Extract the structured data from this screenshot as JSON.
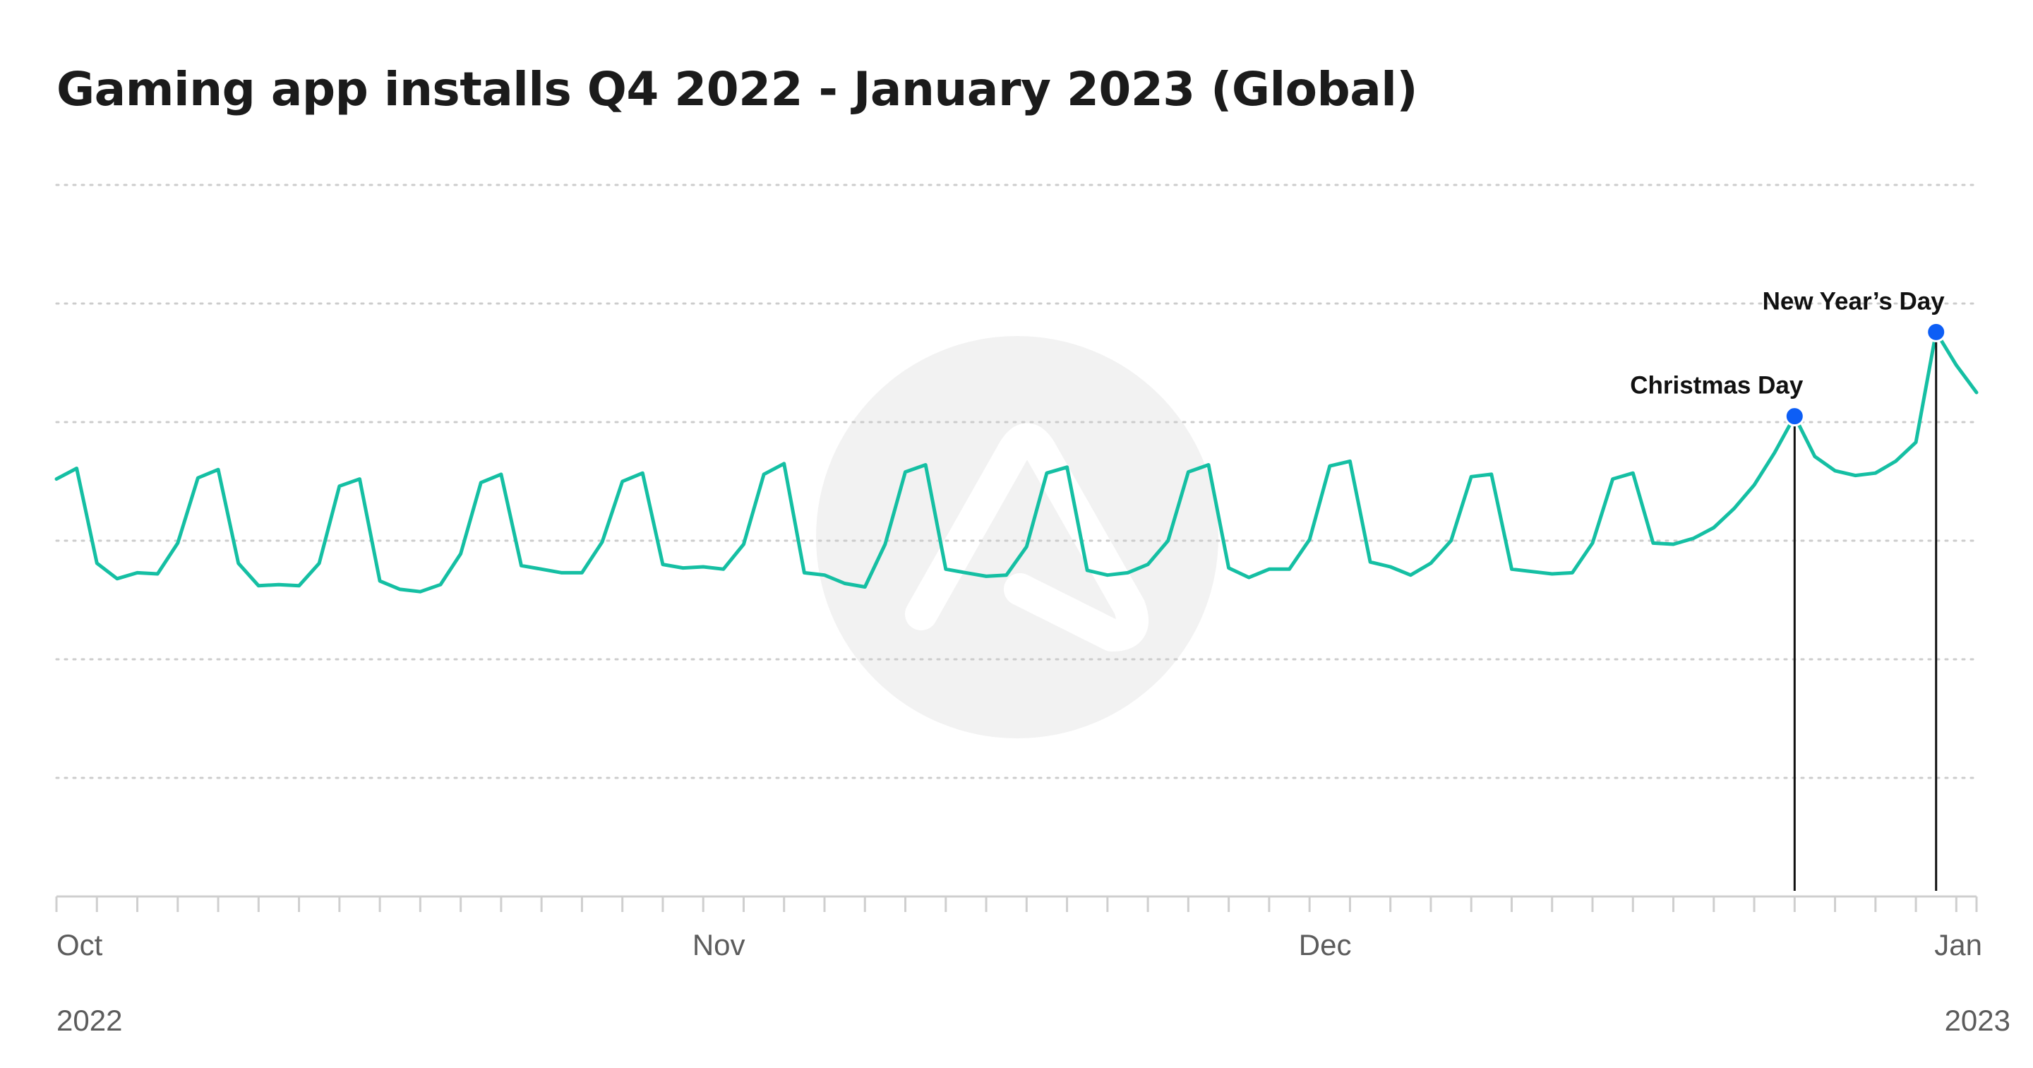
{
  "chart_data": {
    "type": "line",
    "title": "Gaming app installs Q4 2022 - January 2023 (Global)",
    "xlabel": "",
    "ylabel": "",
    "x_tick_labels": [
      "Oct",
      "Nov",
      "Dec",
      "Jan"
    ],
    "year_labels": [
      "2022",
      "2023"
    ],
    "grid": true,
    "grid_style": "dotted horizontal",
    "y_axis_ticks_shown": false,
    "ylim": [
      0,
      6
    ],
    "series": [
      {
        "values": [
          3.52,
          3.61,
          2.81,
          2.68,
          2.73,
          2.72,
          2.98,
          3.53,
          3.6,
          2.81,
          2.62,
          2.63,
          2.62,
          2.81,
          3.46,
          3.52,
          2.66,
          2.59,
          2.57,
          2.63,
          2.89,
          3.49,
          3.56,
          2.79,
          2.76,
          2.73,
          2.73,
          2.99,
          3.5,
          3.57,
          2.8,
          2.77,
          2.78,
          2.76,
          2.97,
          3.56,
          3.65,
          2.73,
          2.71,
          2.64,
          2.61,
          2.97,
          3.58,
          3.64,
          2.76,
          2.73,
          2.7,
          2.71,
          2.95,
          3.57,
          3.62,
          2.75,
          2.71,
          2.73,
          2.8,
          3.0,
          3.58,
          3.64,
          2.77,
          2.69,
          2.76,
          2.76,
          3.01,
          3.63,
          3.67,
          2.82,
          2.78,
          2.71,
          2.81,
          3.0,
          3.54,
          3.56,
          2.76,
          2.74,
          2.72,
          2.73,
          2.98,
          3.52,
          3.57,
          2.98,
          2.97,
          3.02,
          3.11,
          3.27,
          3.47,
          3.74,
          4.05,
          3.71,
          3.59,
          3.55,
          3.57,
          3.67,
          3.83,
          4.76,
          4.48,
          4.25
        ]
      }
    ],
    "x_start": "2022-09-30",
    "x_interval": "1 day",
    "annotations": [
      {
        "label": "Christmas Day",
        "date": "2022-12-25",
        "value": 4.05
      },
      {
        "label": "New Year’s Day",
        "date": "2023-01-01",
        "value": 4.76
      }
    ],
    "colors": {
      "line": "#15bfa3",
      "marker": "#0d5ef5",
      "grid": "#cccccc",
      "axis": "#cfcfcf",
      "annotation_line": "#111111",
      "title": "#1b1b1b",
      "tick_label": "#5c5c5c",
      "watermark": "#f2f2f2"
    }
  }
}
